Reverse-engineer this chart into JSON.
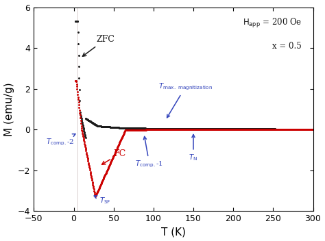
{
  "title": "",
  "xlabel": "T (K)",
  "ylabel": "M (emu/g)",
  "xlim": [
    -50,
    300
  ],
  "ylim": [
    -4,
    6
  ],
  "xticks": [
    -50,
    0,
    50,
    100,
    150,
    200,
    250,
    300
  ],
  "yticks": [
    -4,
    -2,
    0,
    2,
    4,
    6
  ],
  "background_color": "#ffffff",
  "zfc_color": "#1a1a1a",
  "fc_color": "#cc0000",
  "annotation_color": "#1a1a1a",
  "arrow_color_blue": "#3344bb",
  "arrow_color_red": "#cc0000"
}
